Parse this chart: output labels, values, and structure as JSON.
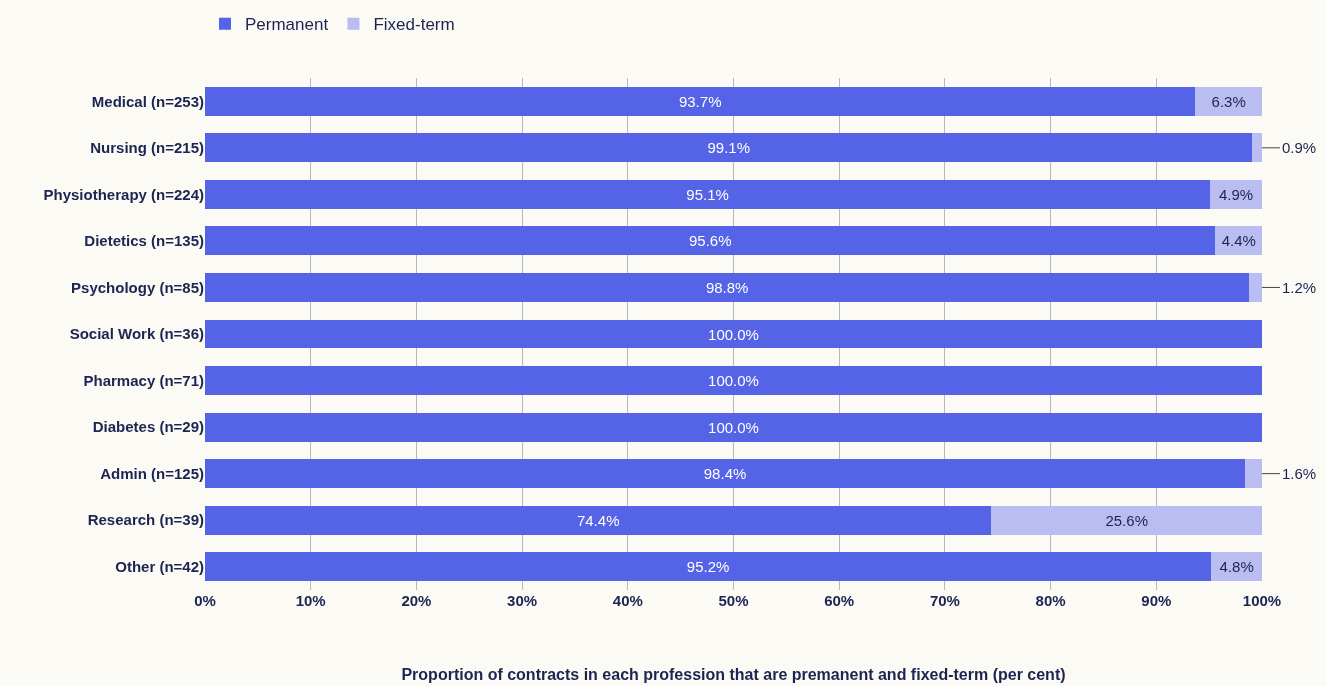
{
  "chart_data": {
    "type": "bar",
    "orientation": "horizontal",
    "stacked": true,
    "xlabel": "Proportion of contracts in each profession that are premanent and fixed-term (per cent)",
    "categories": [
      "Medical (n=253)",
      "Nursing (n=215)",
      "Physiotherapy (n=224)",
      "Dietetics (n=135)",
      "Psychology (n=85)",
      "Social Work (n=36)",
      "Pharmacy (n=71)",
      "Diabetes (n=29)",
      "Admin (n=125)",
      "Research (n=39)",
      "Other (n=42)"
    ],
    "series": [
      {
        "name": "Permanent",
        "color": "#5563e6",
        "values": [
          93.7,
          99.1,
          95.1,
          95.6,
          98.8,
          100.0,
          100.0,
          100.0,
          98.4,
          74.4,
          95.2
        ],
        "value_labels": [
          "93.7%",
          "99.1%",
          "95.1%",
          "95.6%",
          "98.8%",
          "100.0%",
          "100.0%",
          "100.0%",
          "98.4%",
          "74.4%",
          "95.2%"
        ]
      },
      {
        "name": "Fixed-term",
        "color": "#b9bdf1",
        "values": [
          6.3,
          0.9,
          4.9,
          4.4,
          1.2,
          0.0,
          0.0,
          0.0,
          1.6,
          25.6,
          4.8
        ],
        "value_labels": [
          "6.3%",
          "0.9%",
          "4.9%",
          "4.4%",
          "1.2%",
          null,
          null,
          null,
          "1.6%",
          "25.6%",
          "4.8%"
        ]
      }
    ],
    "xlim": [
      0,
      100
    ],
    "xticks": [
      {
        "value": 0,
        "label": "0%"
      },
      {
        "value": 10,
        "label": "10%"
      },
      {
        "value": 20,
        "label": "20%"
      },
      {
        "value": 30,
        "label": "30%"
      },
      {
        "value": 40,
        "label": "40%"
      },
      {
        "value": 50,
        "label": "50%"
      },
      {
        "value": 60,
        "label": "60%"
      },
      {
        "value": 70,
        "label": "70%"
      },
      {
        "value": 80,
        "label": "80%"
      },
      {
        "value": 90,
        "label": "90%"
      },
      {
        "value": 100,
        "label": "100%"
      }
    ],
    "grid": "x",
    "legend": "top left"
  }
}
